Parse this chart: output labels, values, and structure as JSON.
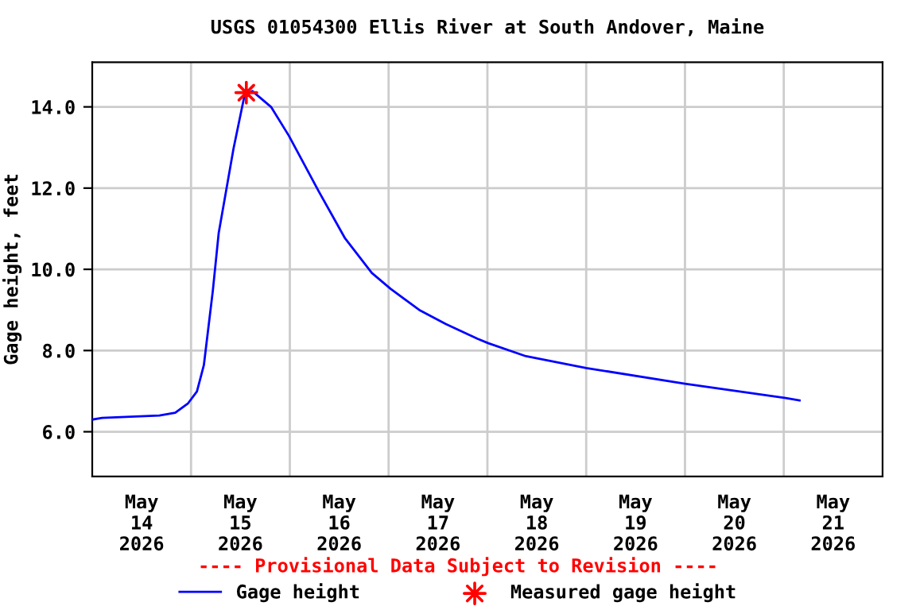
{
  "chart_data": {
    "type": "line",
    "title": "USGS 01054300 Ellis River at South Andover, Maine",
    "ylabel": "Gage height, feet",
    "annotations": [
      "---- Provisional Data Subject to Revision ----"
    ],
    "series": [
      {
        "name": "Gage height",
        "color": "#0000ff",
        "marker": "none",
        "x": [
          "2026-05-14T00:00",
          "2026-05-14T02:24",
          "2026-05-14T16:19",
          "2026-05-14T20:10",
          "2026-05-14T23:17",
          "2026-05-15T01:26",
          "2026-05-15T03:07",
          "2026-05-15T05:17",
          "2026-05-15T06:43",
          "2026-05-15T10:19",
          "2026-05-15T12:58",
          "2026-05-15T14:53",
          "2026-05-15T19:26",
          "2026-05-15T23:46",
          "2026-05-16T06:58",
          "2026-05-16T13:26",
          "2026-05-16T19:55",
          "2026-05-17T00:29",
          "2026-05-17T07:26",
          "2026-05-17T13:55",
          "2026-05-17T21:36",
          "2026-05-18T00:14",
          "2026-05-18T09:22",
          "2026-05-19T00:00",
          "2026-05-20T00:00",
          "2026-05-21T00:29",
          "2026-05-21T03:50"
        ],
        "values": [
          6.3,
          6.34,
          6.4,
          6.47,
          6.7,
          6.99,
          7.64,
          9.46,
          10.89,
          12.97,
          14.27,
          14.39,
          14.0,
          13.29,
          11.93,
          10.76,
          9.91,
          9.52,
          9.0,
          8.65,
          8.29,
          8.18,
          7.86,
          7.57,
          7.18,
          6.83,
          6.77
        ]
      },
      {
        "name": "Measured gage height",
        "color": "#ff0000",
        "type": "scatter",
        "marker": "star",
        "x": [
          "2026-05-15T13:26"
        ],
        "values": [
          14.35
        ]
      }
    ],
    "xlim": [
      "2026-05-14T00:00",
      "2026-05-22T00:00"
    ],
    "xticks": [
      {
        "value": "2026-05-14T12:00",
        "label": "May\n14\n2026"
      },
      {
        "value": "2026-05-15T00:00",
        "label": null
      },
      {
        "value": "2026-05-15T12:00",
        "label": "May\n15\n2026"
      },
      {
        "value": "2026-05-16T00:00",
        "label": null
      },
      {
        "value": "2026-05-16T12:00",
        "label": "May\n16\n2026"
      },
      {
        "value": "2026-05-17T00:00",
        "label": null
      },
      {
        "value": "2026-05-17T12:00",
        "label": "May\n17\n2026"
      },
      {
        "value": "2026-05-18T00:00",
        "label": null
      },
      {
        "value": "2026-05-18T12:00",
        "label": "May\n18\n2026"
      },
      {
        "value": "2026-05-19T00:00",
        "label": null
      },
      {
        "value": "2026-05-19T12:00",
        "label": "May\n19\n2026"
      },
      {
        "value": "2026-05-20T00:00",
        "label": null
      },
      {
        "value": "2026-05-20T12:00",
        "label": "May\n20\n2026"
      },
      {
        "value": "2026-05-21T00:00",
        "label": null
      },
      {
        "value": "2026-05-21T12:00",
        "label": "May\n21\n2026"
      }
    ],
    "ylim": [
      4.9,
      15.1
    ],
    "yticks": [
      {
        "value": 6,
        "label": "6.0"
      },
      {
        "value": 8,
        "label": "8.0"
      },
      {
        "value": 10,
        "label": "10.0"
      },
      {
        "value": 12,
        "label": "12.0"
      },
      {
        "value": 14,
        "label": "14.0"
      }
    ],
    "grid": true,
    "legend": "bottom"
  }
}
